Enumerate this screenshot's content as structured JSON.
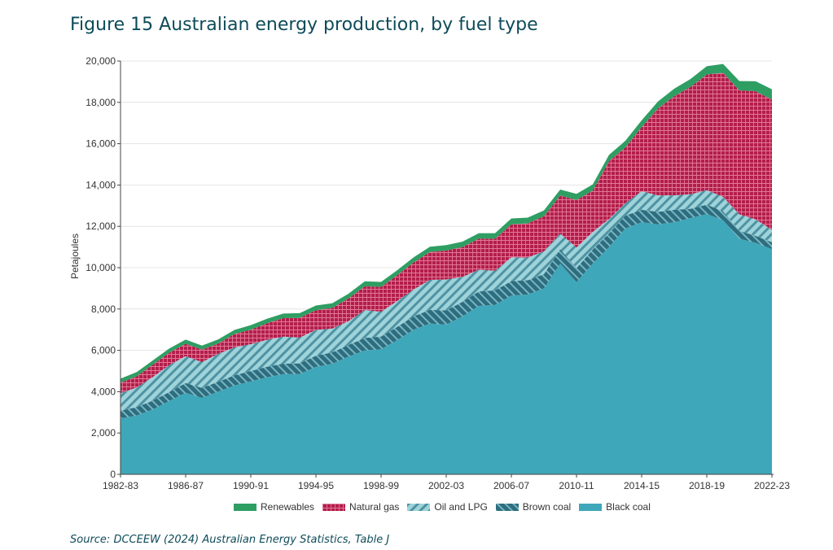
{
  "figure": {
    "title": "Figure 15 Australian energy production, by fuel type",
    "source": "Source: DCCEEW (2024) Australian Energy Statistics, Table J"
  },
  "colors": {
    "black_coal": "#3ea7b9",
    "brown_coal": "#2e6d7e",
    "oil_lpg": "#9ed3da",
    "natural_gas": "#b31e4b",
    "renewables": "#2f9e63"
  },
  "chart_data": {
    "type": "area",
    "stacked": true,
    "ylabel": "Petajoules",
    "ylim": [
      0,
      20000
    ],
    "yticks": [
      "0",
      "2,000",
      "4,000",
      "6,000",
      "8,000",
      "10,000",
      "12,000",
      "14,000",
      "16,000",
      "18,000",
      "20,000"
    ],
    "xtick_labels": [
      "1982-83",
      "1986-87",
      "1990-91",
      "1994-95",
      "1998-99",
      "2002-03",
      "2006-07",
      "2010-11",
      "2014-15",
      "2018-19",
      "2022-23"
    ],
    "x": [
      "1982-83",
      "1983-84",
      "1984-85",
      "1985-86",
      "1986-87",
      "1987-88",
      "1988-89",
      "1989-90",
      "1990-91",
      "1991-92",
      "1992-93",
      "1993-94",
      "1994-95",
      "1995-96",
      "1996-97",
      "1997-98",
      "1998-99",
      "1999-00",
      "2000-01",
      "2001-02",
      "2002-03",
      "2003-04",
      "2004-05",
      "2005-06",
      "2006-07",
      "2007-08",
      "2008-09",
      "2009-10",
      "2010-11",
      "2011-12",
      "2012-13",
      "2013-14",
      "2014-15",
      "2015-16",
      "2016-17",
      "2017-18",
      "2018-19",
      "2019-20",
      "2020-21",
      "2021-22",
      "2022-23"
    ],
    "legend": [
      "Renewables",
      "Natural gas",
      "Oil and LPG",
      "Brown coal",
      "Black coal"
    ],
    "legend_position": "bottom",
    "series": [
      {
        "name": "Black coal",
        "key": "black_coal",
        "values": [
          2700,
          2850,
          3150,
          3550,
          3950,
          3700,
          4000,
          4300,
          4500,
          4700,
          4850,
          4850,
          5200,
          5350,
          5700,
          6000,
          6050,
          6500,
          7000,
          7300,
          7250,
          7650,
          8150,
          8200,
          8650,
          8700,
          9000,
          10200,
          9300,
          10200,
          11000,
          11900,
          12200,
          12100,
          12200,
          12400,
          12600,
          12300,
          11400,
          11200,
          10900
        ]
      },
      {
        "name": "Brown coal",
        "key": "brown_coal",
        "values": [
          380,
          400,
          420,
          440,
          470,
          480,
          480,
          490,
          500,
          510,
          510,
          520,
          540,
          550,
          560,
          600,
          620,
          640,
          650,
          660,
          680,
          700,
          700,
          700,
          700,
          690,
          690,
          690,
          680,
          680,
          660,
          620,
          600,
          600,
          600,
          450,
          450,
          430,
          380,
          340,
          330
        ]
      },
      {
        "name": "Oil and LPG",
        "key": "oil_lpg",
        "values": [
          850,
          950,
          1150,
          1300,
          1300,
          1250,
          1350,
          1350,
          1300,
          1300,
          1300,
          1250,
          1250,
          1150,
          1150,
          1350,
          1200,
          1250,
          1300,
          1450,
          1500,
          1200,
          1050,
          950,
          1150,
          1100,
          1100,
          750,
          1000,
          850,
          700,
          600,
          900,
          800,
          700,
          700,
          700,
          700,
          800,
          800,
          600
        ]
      },
      {
        "name": "Natural gas",
        "key": "natural_gas",
        "values": [
          500,
          550,
          600,
          600,
          600,
          600,
          500,
          650,
          700,
          800,
          900,
          950,
          950,
          1000,
          1100,
          1150,
          1200,
          1250,
          1300,
          1350,
          1400,
          1450,
          1500,
          1550,
          1600,
          1650,
          1700,
          1850,
          2300,
          2000,
          2800,
          2700,
          3100,
          4200,
          4800,
          5200,
          5600,
          6000,
          6000,
          6200,
          6300
        ]
      },
      {
        "name": "Renewables",
        "key": "renewables",
        "values": [
          200,
          200,
          200,
          200,
          200,
          200,
          200,
          200,
          220,
          220,
          220,
          230,
          230,
          230,
          230,
          240,
          240,
          240,
          250,
          250,
          260,
          260,
          270,
          270,
          280,
          280,
          280,
          290,
          290,
          300,
          300,
          320,
          330,
          340,
          360,
          380,
          400,
          430,
          450,
          480,
          500
        ]
      }
    ]
  }
}
